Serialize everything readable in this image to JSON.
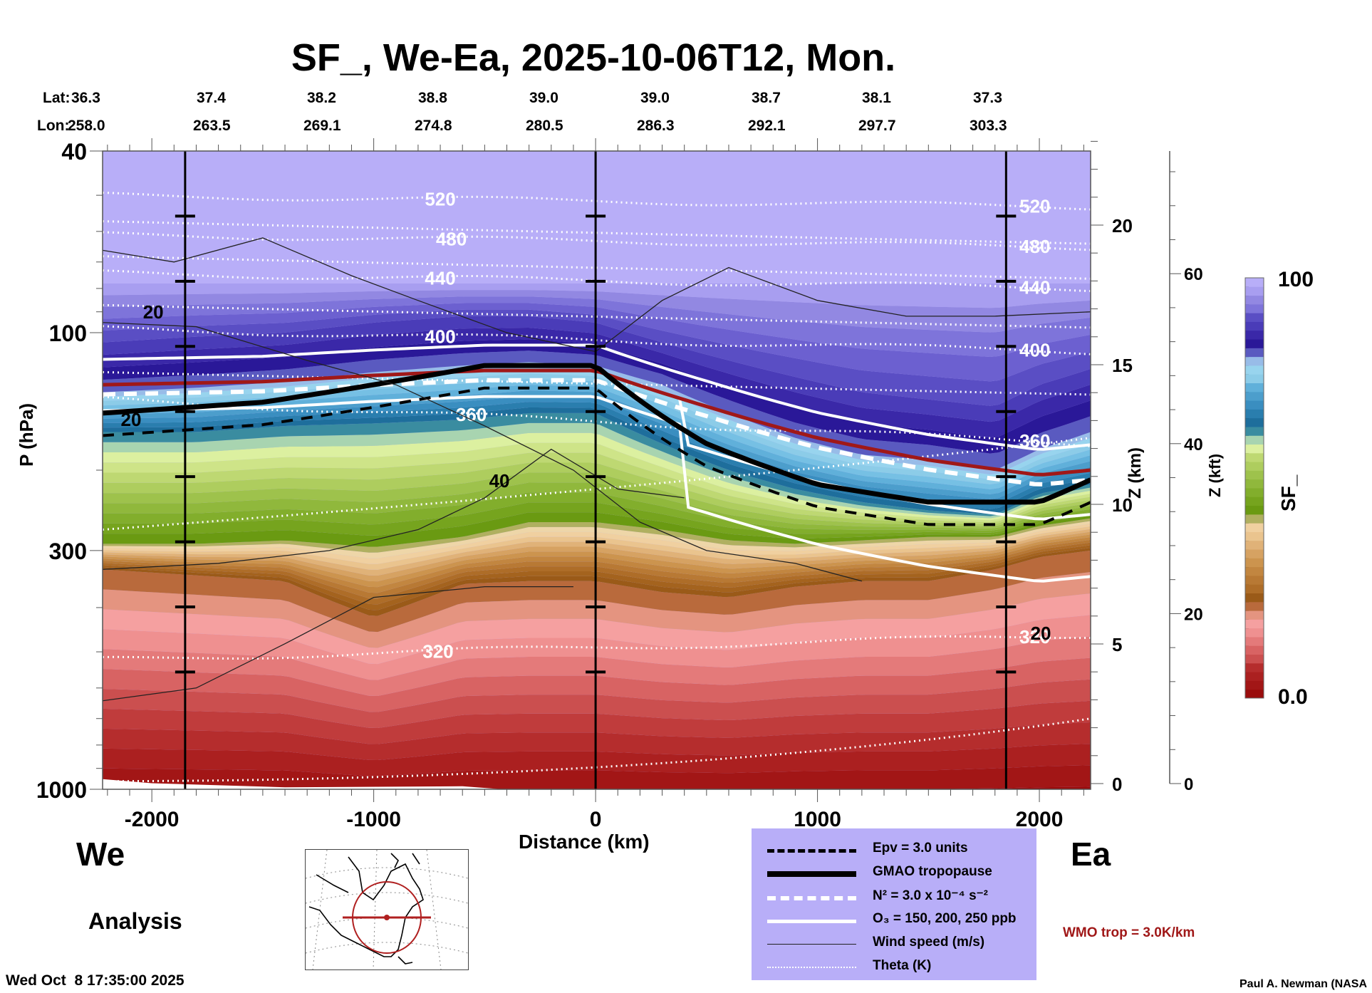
{
  "chart_data": {
    "type": "heatmap",
    "title": "SF_, We-Ea, 2025-10-06T12, Mon.",
    "xlabel": "Distance (km)",
    "ylabel": "P (hPa)",
    "y2label": "Z (km)",
    "y3label": "Z (kft)",
    "colorbar_label": "SF_",
    "xlim": [
      -2222,
      2231
    ],
    "ylim_hpa": [
      1000,
      40
    ],
    "x_ticks": [
      -2000,
      -1000,
      0,
      1000,
      2000
    ],
    "x_tick_labels": [
      "-2000",
      "-1000",
      "0",
      "1000",
      "2000"
    ],
    "y_ticks_hpa": [
      40,
      100,
      300,
      1000
    ],
    "y_tick_labels": [
      "40",
      "100",
      "300",
      "1000"
    ],
    "z_km_ticks": [
      0,
      5,
      10,
      15,
      20
    ],
    "z_km_tick_labels": [
      "0",
      "5",
      "10",
      "15",
      "20"
    ],
    "z_kft_ticks": [
      0,
      20,
      40,
      60
    ],
    "z_kft_tick_labels": [
      "0",
      "20",
      "40",
      "60"
    ],
    "colorbar": {
      "min": 0.0,
      "max": 100,
      "min_label": "0.0",
      "max_label": "100",
      "levels": 48
    },
    "lat_lon": {
      "lat_label": "Lat:",
      "lon_label": "Lon:",
      "lat": [
        "36.3",
        "37.4",
        "38.2",
        "38.8",
        "39.0",
        "39.0",
        "38.7",
        "38.1",
        "37.3"
      ],
      "lon": [
        "258.0",
        "263.5",
        "269.1",
        "274.8",
        "280.5",
        "286.3",
        "292.1",
        "297.7",
        "303.3"
      ]
    },
    "vertical_marker_lines_km": [
      -1850,
      0,
      1850
    ],
    "theta_contours": [
      {
        "value": 520,
        "label": "520",
        "p_hpa_left": 50,
        "p_hpa_right": 53
      },
      {
        "value": 480,
        "label": "480",
        "p_hpa_left": 61,
        "p_hpa_right": 65
      },
      {
        "value": 440,
        "label": "440",
        "p_hpa_left": 74,
        "p_hpa_right": 80
      },
      {
        "value": 400,
        "label": "400",
        "p_hpa_left": 98,
        "p_hpa_right": 110
      },
      {
        "value": 360,
        "label": "360",
        "p_hpa_left": 140,
        "p_hpa_right": 175
      },
      {
        "value": 320,
        "label": "320",
        "p_hpa_left": 520,
        "p_hpa_right": 460
      }
    ],
    "wind_contour_labels": [
      "20",
      "20",
      "40",
      "20"
    ],
    "legend": [
      {
        "label": "Epv = 3.0 units",
        "style": "black-dashed"
      },
      {
        "label": "GMAO tropopause",
        "style": "black-thick"
      },
      {
        "label": "N² = 3.0 x 10⁻⁴ s⁻²",
        "style": "white-dashed"
      },
      {
        "label": "O₃ = 150, 200, 250 ppb",
        "style": "white-solid"
      },
      {
        "label": "Wind speed (m/s)",
        "style": "black-thin"
      },
      {
        "label": "Theta (K)",
        "style": "white-dotted"
      }
    ],
    "wmo_trop_label": "WMO trop = 3.0K/km",
    "wmo_trop_color": "#a01818",
    "tropopause_p_hpa": {
      "x_km": [
        -2222,
        -1500,
        -1000,
        -500,
        0,
        500,
        1000,
        1500,
        2000,
        2231
      ],
      "gmao": [
        150,
        142,
        130,
        118,
        118,
        175,
        215,
        235,
        235,
        210
      ],
      "wmo": [
        130,
        128,
        124,
        121,
        121,
        145,
        170,
        190,
        205,
        200
      ]
    }
  },
  "labels": {
    "west": "We",
    "east": "Ea",
    "analysis": "Analysis",
    "timestamp": "Wed Oct  8 17:35:00 2025",
    "credit": "Paul A. Newman (NASA"
  }
}
